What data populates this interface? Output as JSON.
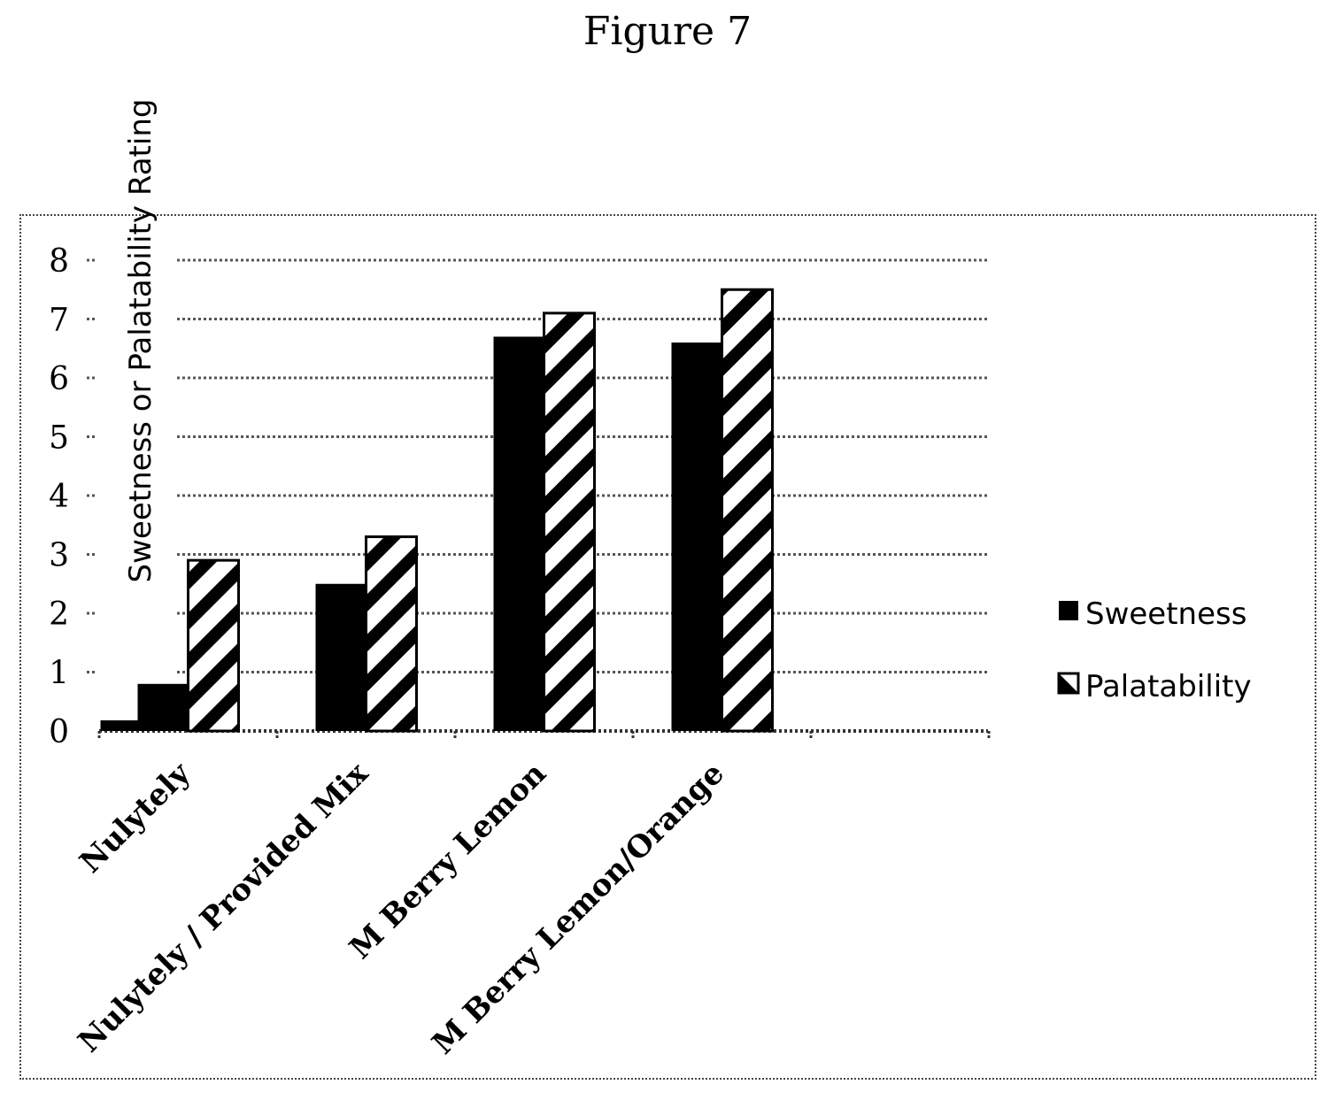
{
  "figure": {
    "title": "Figure 7"
  },
  "chart_data": {
    "type": "bar",
    "title": "Figure 7",
    "xlabel": "",
    "ylabel": "Sweetness or Palatability Rating",
    "categories": [
      "Nulytely",
      "Nulytely / Provided Mix",
      "M Berry Lemon",
      "M Berry Lemon/Orange"
    ],
    "series": [
      {
        "name": "Sweetness",
        "values": [
          0.8,
          2.5,
          6.7,
          6.6
        ],
        "fill": "solid",
        "color": "#000000"
      },
      {
        "name": "Palatability",
        "values": [
          2.9,
          3.3,
          7.1,
          7.5
        ],
        "fill": "hatched",
        "color": "#000000"
      }
    ],
    "ylim": [
      0,
      8
    ],
    "yticks": [
      "0",
      "1",
      "2",
      "3",
      "4",
      "5",
      "6",
      "7",
      "8"
    ],
    "grid": true,
    "legend_position": "right"
  }
}
